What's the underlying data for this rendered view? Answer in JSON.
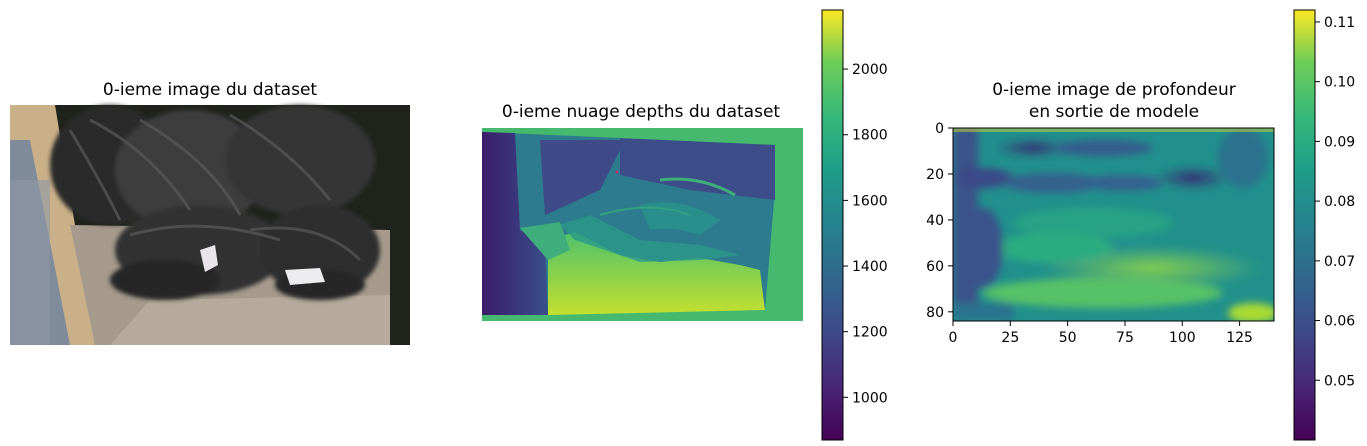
{
  "chart_data": [
    {
      "type": "image",
      "title": "0-ieme image du dataset",
      "colors": {
        "tire": "#3b3b3b",
        "floor": "#a59a8c",
        "wall": "#c9b089",
        "background": "#20231c"
      }
    },
    {
      "type": "heatmap",
      "title": "0-ieme nuage depths du dataset",
      "colormap": "viridis",
      "colorbar": {
        "range": [
          870,
          2180
        ],
        "ticks": [
          1000,
          1200,
          1400,
          1600,
          1800,
          2000
        ]
      }
    },
    {
      "type": "heatmap",
      "title_lines": [
        "0-ieme image de profondeur",
        "en sortie de modele"
      ],
      "colormap": "viridis",
      "xlim": [
        0,
        140
      ],
      "ylim": [
        84,
        0
      ],
      "xticks": [
        0,
        25,
        50,
        75,
        100,
        125
      ],
      "yticks": [
        0,
        20,
        40,
        60,
        80
      ],
      "colorbar": {
        "range": [
          0.04,
          0.112
        ],
        "ticks": [
          0.05,
          0.06,
          0.07,
          0.08,
          0.09,
          0.1,
          0.11
        ],
        "tick_labels": [
          "0.05",
          "0.06",
          "0.07",
          "0.08",
          "0.09",
          "0.10",
          "0.11"
        ]
      }
    }
  ]
}
